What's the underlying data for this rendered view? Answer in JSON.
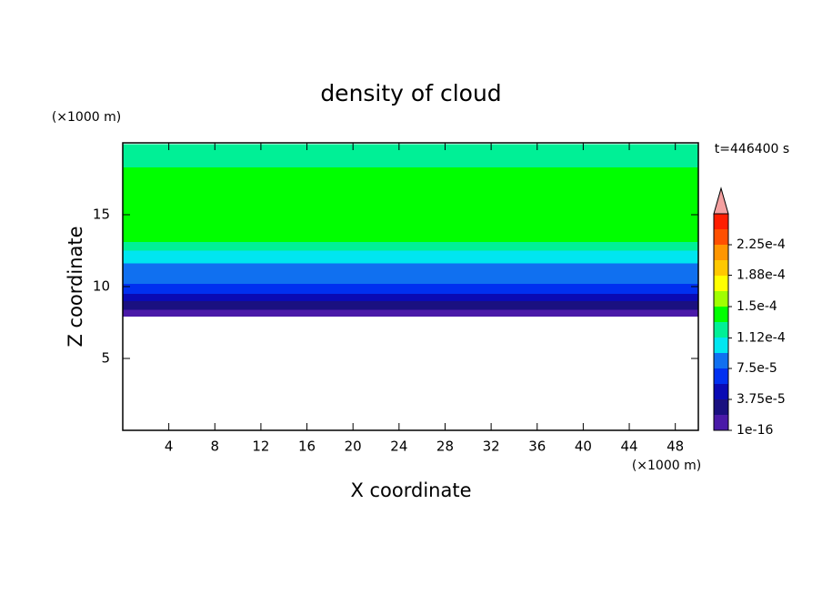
{
  "chart_data": {
    "type": "contour",
    "title": "density of cloud",
    "x_label": "X coordinate",
    "y_label": "Z coordinate",
    "x_units": "(×1000 m)",
    "y_units": "(×1000 m)",
    "annotation": "t=446400 s",
    "xlim": [
      0,
      50
    ],
    "xticks": [
      4,
      8,
      12,
      16,
      20,
      24,
      28,
      32,
      36,
      40,
      44,
      48
    ],
    "ylim": [
      0,
      20
    ],
    "yticks": [
      5,
      10,
      15
    ],
    "profile": {
      "z_edges": [
        7.9,
        8.4,
        9.0,
        9.5,
        10.2,
        10.9,
        11.6,
        12.5,
        13.1,
        18.3,
        19.9
      ],
      "values": [
        1e-05,
        2.5e-05,
        4.5e-05,
        6e-05,
        8e-05,
        9e-05,
        0.000105,
        0.00012,
        0.00014,
        0.00012
      ]
    },
    "colorbar": {
      "levels": [
        0,
        1.875e-05,
        3.75e-05,
        5.625e-05,
        7.5e-05,
        9.375e-05,
        0.0001125,
        0.00013125,
        0.00015,
        0.00016875,
        0.0001875,
        0.00020625,
        0.000225,
        0.00024375,
        0.0002625
      ],
      "colors": [
        "#4a1aa8",
        "#1a1080",
        "#0a0ab4",
        "#0030f0",
        "#1070f0",
        "#00e6f0",
        "#00f096",
        "#00ff00",
        "#a0ff00",
        "#ffff00",
        "#ffc800",
        "#ff9600",
        "#ff5000",
        "#ff1e00"
      ],
      "extend_color": "#f4a0a0",
      "ticks": [
        {
          "value": 1e-16,
          "label": "1e-16"
        },
        {
          "value": 3.75e-05,
          "label": "3.75e-5"
        },
        {
          "value": 7.5e-05,
          "label": "7.5e-5"
        },
        {
          "value": 0.000112,
          "label": "1.12e-4"
        },
        {
          "value": 0.00015,
          "label": "1.5e-4"
        },
        {
          "value": 0.000188,
          "label": "1.88e-4"
        },
        {
          "value": 0.000225,
          "label": "2.25e-4"
        }
      ]
    }
  }
}
